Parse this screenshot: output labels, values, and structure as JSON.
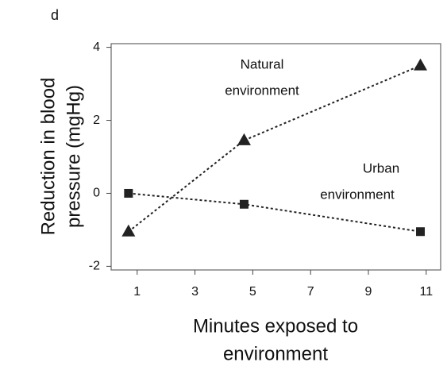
{
  "chart_data": {
    "type": "line",
    "panel_label": "d",
    "xlabel": [
      "Minutes exposed to",
      "environment"
    ],
    "ylabel": [
      "Reduction in blood",
      "pressure (mgHg)"
    ],
    "xlim": [
      0.1,
      11.5
    ],
    "xticks": [
      1,
      3,
      5,
      7,
      9,
      11
    ],
    "ylim": [
      -2.1,
      4.1
    ],
    "yticks": [
      -2,
      0,
      2,
      4
    ],
    "grid": false,
    "series": [
      {
        "name": [
          "Natural",
          "environment"
        ],
        "color": "#222222",
        "marker": "triangle",
        "x": [
          0.7,
          4.7,
          10.8
        ],
        "values": [
          -1.05,
          1.45,
          3.5
        ]
      },
      {
        "name": [
          "Urban",
          "environment"
        ],
        "color": "#222222",
        "marker": "square",
        "x": [
          0.7,
          4.7,
          10.8
        ],
        "values": [
          0,
          -0.3,
          -1.05
        ]
      }
    ]
  }
}
